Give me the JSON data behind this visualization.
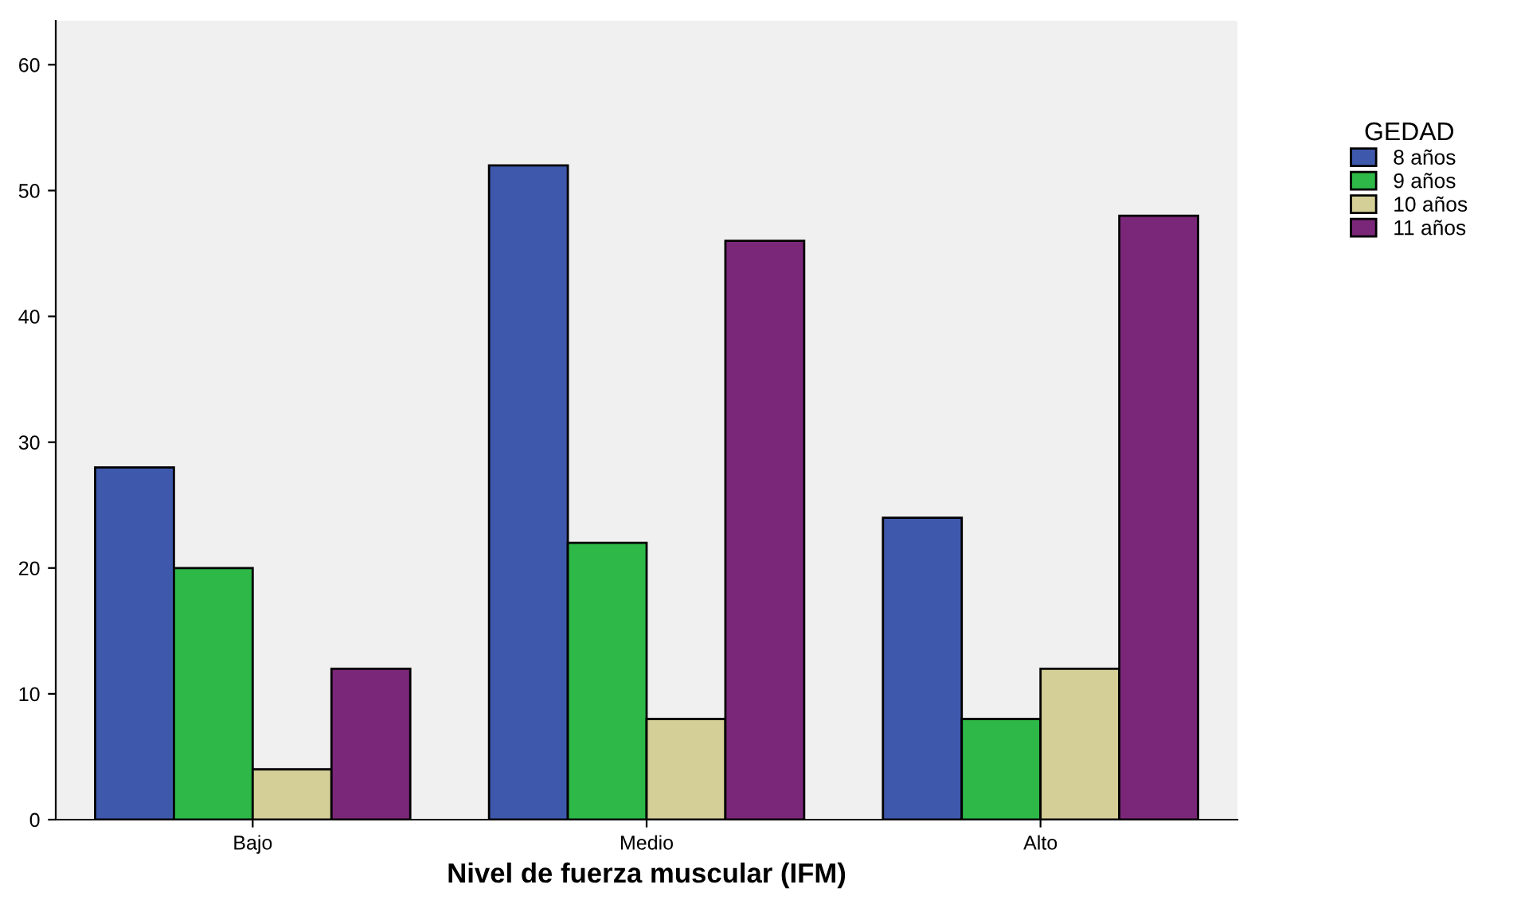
{
  "chart_data": {
    "type": "bar",
    "xlabel": "Nivel de fuerza muscular (IFM)",
    "legend_title": "GEDAD",
    "legend": "right",
    "categories": [
      "Bajo",
      "Medio",
      "Alto"
    ],
    "series": [
      {
        "name": "8 años",
        "color": "#3e58ac",
        "values": [
          28,
          52,
          24
        ]
      },
      {
        "name": "9 años",
        "color": "#2eb848",
        "values": [
          20,
          22,
          8
        ]
      },
      {
        "name": "10 años",
        "color": "#d4cf96",
        "values": [
          4,
          8,
          12
        ]
      },
      {
        "name": "11 años",
        "color": "#7b2779",
        "values": [
          12,
          46,
          48
        ]
      }
    ],
    "ylim": [
      0,
      63.5
    ],
    "yticks": [
      0,
      10,
      20,
      30,
      40,
      50,
      60
    ],
    "grid": false
  }
}
